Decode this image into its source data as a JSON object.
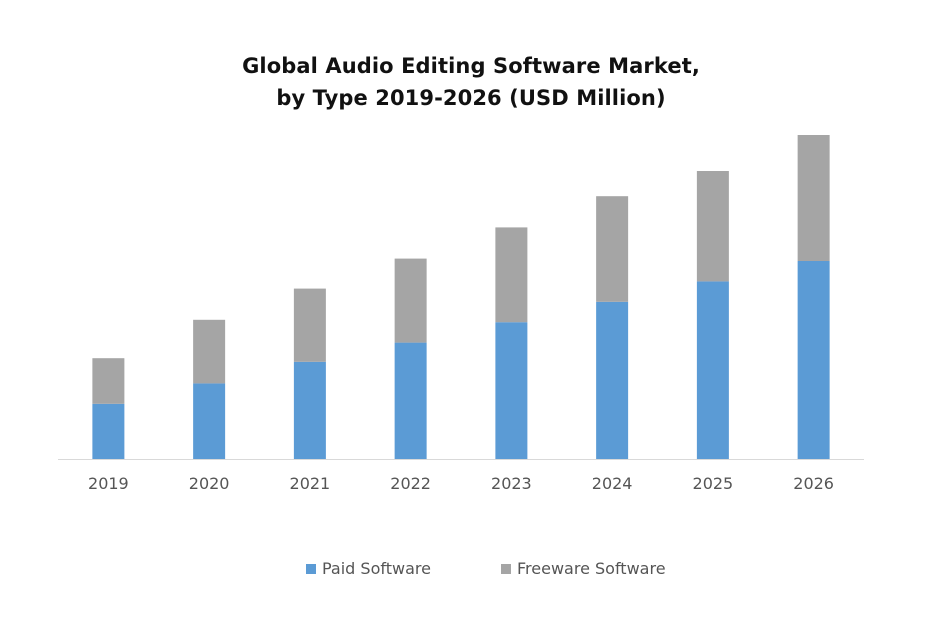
{
  "chart_data": {
    "type": "bar",
    "stacked": true,
    "title_lines": [
      "Global Audio Editing Software Market,",
      "by Type 2019-2026 (USD Million)"
    ],
    "categories": [
      "2019",
      "2020",
      "2021",
      "2022",
      "2023",
      "2024",
      "2025",
      "2026"
    ],
    "series": [
      {
        "name": "Paid Software",
        "color": "#5b9bd5",
        "values": [
          46,
          63,
          81,
          97,
          114,
          131,
          148,
          165
        ]
      },
      {
        "name": "Freeware Software",
        "color": "#a5a5a5",
        "values": [
          38,
          53,
          61,
          70,
          79,
          88,
          92,
          105
        ]
      }
    ],
    "ylim": [
      0,
      300
    ],
    "y_axis_visible": false,
    "grid": false,
    "legend_position": "bottom"
  }
}
